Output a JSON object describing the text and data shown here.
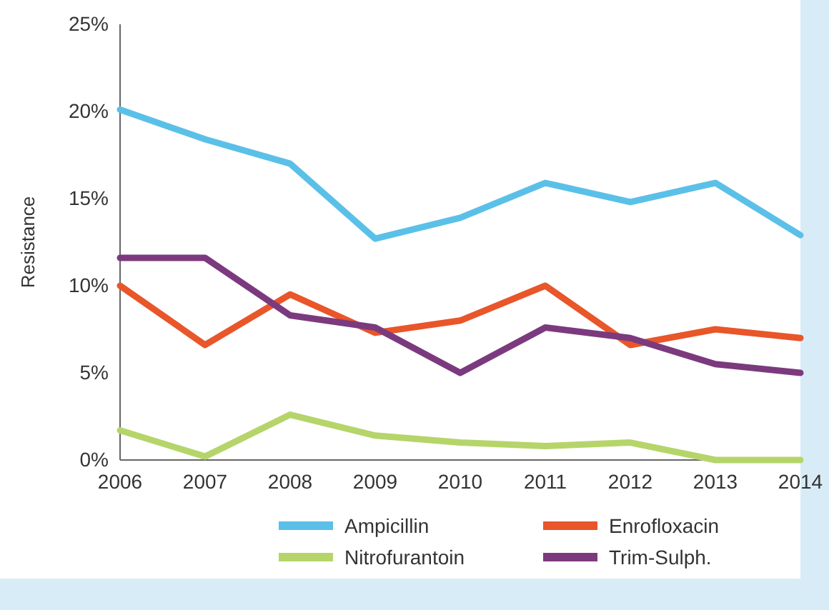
{
  "chart_data": {
    "type": "line",
    "ylabel": "Resistance",
    "x": [
      2006,
      2007,
      2008,
      2009,
      2010,
      2011,
      2012,
      2013,
      2014
    ],
    "xlim": [
      2006,
      2014
    ],
    "xticks": [
      2006,
      2007,
      2008,
      2009,
      2010,
      2011,
      2012,
      2013,
      2014
    ],
    "ylim": [
      0,
      25
    ],
    "yticks": [
      {
        "value": 0,
        "label": "0%"
      },
      {
        "value": 5,
        "label": "5%"
      },
      {
        "value": 10,
        "label": "10%"
      },
      {
        "value": 15,
        "label": "15%"
      },
      {
        "value": 20,
        "label": "20%"
      },
      {
        "value": 25,
        "label": "25%"
      }
    ],
    "grid": false,
    "legend": "bottom",
    "marker": "none",
    "line_style": "solid",
    "series": [
      {
        "name": "Ampicillin",
        "color": "#5bc0e8",
        "values": [
          20.1,
          18.4,
          17.0,
          12.7,
          13.9,
          15.9,
          14.8,
          15.9,
          12.9
        ]
      },
      {
        "name": "Enrofloxacin",
        "color": "#e8562a",
        "values": [
          10.0,
          6.6,
          9.5,
          7.3,
          8.0,
          10.0,
          6.6,
          7.5,
          7.0
        ]
      },
      {
        "name": "Nitrofurantoin",
        "color": "#b5d56a",
        "values": [
          1.7,
          0.2,
          2.6,
          1.4,
          1.0,
          0.8,
          1.0,
          0,
          0
        ]
      },
      {
        "name": "Trim-Sulph.",
        "color": "#7b3a7e",
        "values": [
          11.6,
          11.6,
          8.3,
          7.6,
          5.0,
          7.6,
          7.0,
          5.5,
          5.0
        ]
      }
    ]
  }
}
